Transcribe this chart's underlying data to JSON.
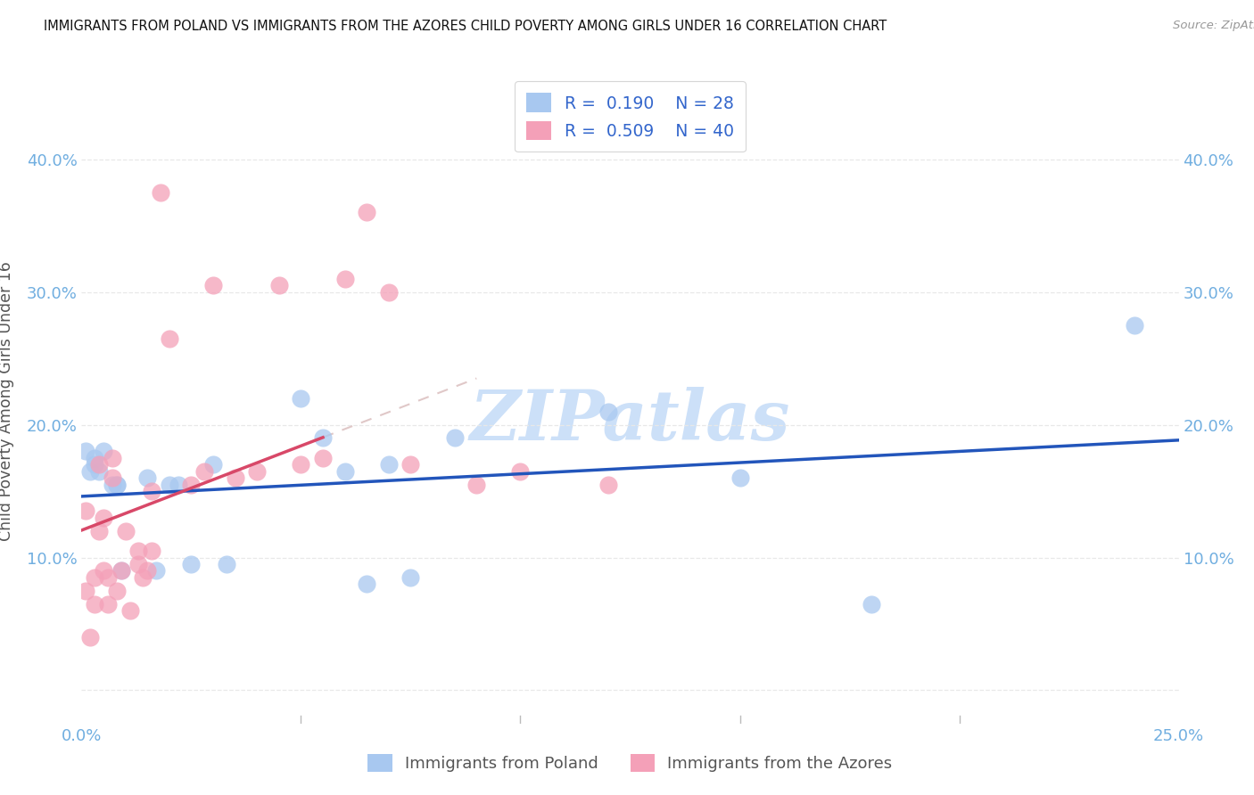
{
  "title": "IMMIGRANTS FROM POLAND VS IMMIGRANTS FROM THE AZORES CHILD POVERTY AMONG GIRLS UNDER 16 CORRELATION CHART",
  "source": "Source: ZipAtlas.com",
  "ylabel": "Child Poverty Among Girls Under 16",
  "xlim": [
    0.0,
    0.25
  ],
  "ylim": [
    -0.025,
    0.46
  ],
  "xtick_positions": [
    0.0,
    0.05,
    0.1,
    0.15,
    0.2,
    0.25
  ],
  "xticklabels": [
    "0.0%",
    "",
    "",
    "",
    "",
    "25.0%"
  ],
  "ytick_positions": [
    0.0,
    0.1,
    0.2,
    0.3,
    0.4
  ],
  "yticklabels": [
    "",
    "10.0%",
    "20.0%",
    "30.0%",
    "40.0%"
  ],
  "legend_poland_label": "Immigrants from Poland",
  "legend_azores_label": "Immigrants from the Azores",
  "R_poland": "0.190",
  "N_poland": "28",
  "R_azores": "0.509",
  "N_azores": "40",
  "color_poland": "#a8c8f0",
  "color_azores": "#f4a0b8",
  "trendline_poland_color": "#2255bb",
  "trendline_azores_color": "#d84868",
  "trendline_dashed_color": "#e0c8c8",
  "background_color": "#ffffff",
  "watermark_text": "ZIPatlas",
  "watermark_color": "#cce0f8",
  "tick_color": "#70aee0",
  "grid_color": "#e8e8e8",
  "poland_x": [
    0.001,
    0.002,
    0.003,
    0.004,
    0.005,
    0.007,
    0.008,
    0.009,
    0.015,
    0.017,
    0.02,
    0.022,
    0.025,
    0.03,
    0.033,
    0.05,
    0.055,
    0.06,
    0.065,
    0.07,
    0.075,
    0.085,
    0.12,
    0.15,
    0.18,
    0.24,
    0.003,
    0.008
  ],
  "poland_y": [
    0.18,
    0.165,
    0.17,
    0.165,
    0.18,
    0.155,
    0.155,
    0.09,
    0.16,
    0.09,
    0.155,
    0.155,
    0.095,
    0.17,
    0.095,
    0.22,
    0.19,
    0.165,
    0.08,
    0.17,
    0.085,
    0.19,
    0.21,
    0.16,
    0.065,
    0.275,
    0.175,
    0.155
  ],
  "azores_x": [
    0.001,
    0.001,
    0.002,
    0.003,
    0.003,
    0.004,
    0.004,
    0.005,
    0.005,
    0.006,
    0.006,
    0.007,
    0.007,
    0.008,
    0.009,
    0.01,
    0.011,
    0.013,
    0.013,
    0.014,
    0.015,
    0.016,
    0.016,
    0.018,
    0.02,
    0.025,
    0.028,
    0.03,
    0.035,
    0.04,
    0.045,
    0.05,
    0.055,
    0.06,
    0.065,
    0.07,
    0.075,
    0.09,
    0.1,
    0.12
  ],
  "azores_y": [
    0.135,
    0.075,
    0.04,
    0.085,
    0.065,
    0.12,
    0.17,
    0.09,
    0.13,
    0.065,
    0.085,
    0.16,
    0.175,
    0.075,
    0.09,
    0.12,
    0.06,
    0.095,
    0.105,
    0.085,
    0.09,
    0.105,
    0.15,
    0.375,
    0.265,
    0.155,
    0.165,
    0.305,
    0.16,
    0.165,
    0.305,
    0.17,
    0.175,
    0.31,
    0.36,
    0.3,
    0.17,
    0.155,
    0.165,
    0.155
  ],
  "trendline_poland_x0": 0.0,
  "trendline_poland_x1": 0.25,
  "trendline_azores_x0": 0.0,
  "trendline_azores_x1": 0.055
}
